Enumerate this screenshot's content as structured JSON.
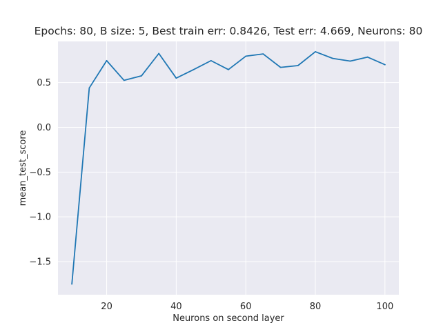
{
  "chart_data": {
    "type": "line",
    "title": "Epochs: 80, B size: 5, Best train err: 0.8426, Test err: 4.669, Neurons: 80",
    "xlabel": "Neurons on second layer",
    "ylabel": "mean_test_score",
    "xlim": [
      6,
      104
    ],
    "ylim": [
      -1.87,
      0.96
    ],
    "xticks": [
      20,
      40,
      60,
      80,
      100
    ],
    "yticks": [
      -1.5,
      -1.0,
      -0.5,
      0.0,
      0.5
    ],
    "xtick_labels": [
      "20",
      "40",
      "60",
      "80",
      "100"
    ],
    "ytick_labels": [
      "−1.5",
      "−1.0",
      "−0.5",
      "0.0",
      "0.5"
    ],
    "grid": true,
    "series": [
      {
        "color": "#1f77b4",
        "x": [
          10,
          15,
          20,
          25,
          30,
          35,
          40,
          45,
          50,
          55,
          60,
          65,
          70,
          75,
          80,
          85,
          90,
          95,
          100
        ],
        "y": [
          -1.75,
          0.44,
          0.745,
          0.525,
          0.575,
          0.825,
          0.55,
          0.645,
          0.745,
          0.645,
          0.795,
          0.82,
          0.67,
          0.69,
          0.845,
          0.77,
          0.74,
          0.785,
          0.7
        ]
      }
    ],
    "style": {
      "plot_bg": "#eaeaf2",
      "grid_color": "#ffffff",
      "page_bg": "#ffffff"
    }
  }
}
